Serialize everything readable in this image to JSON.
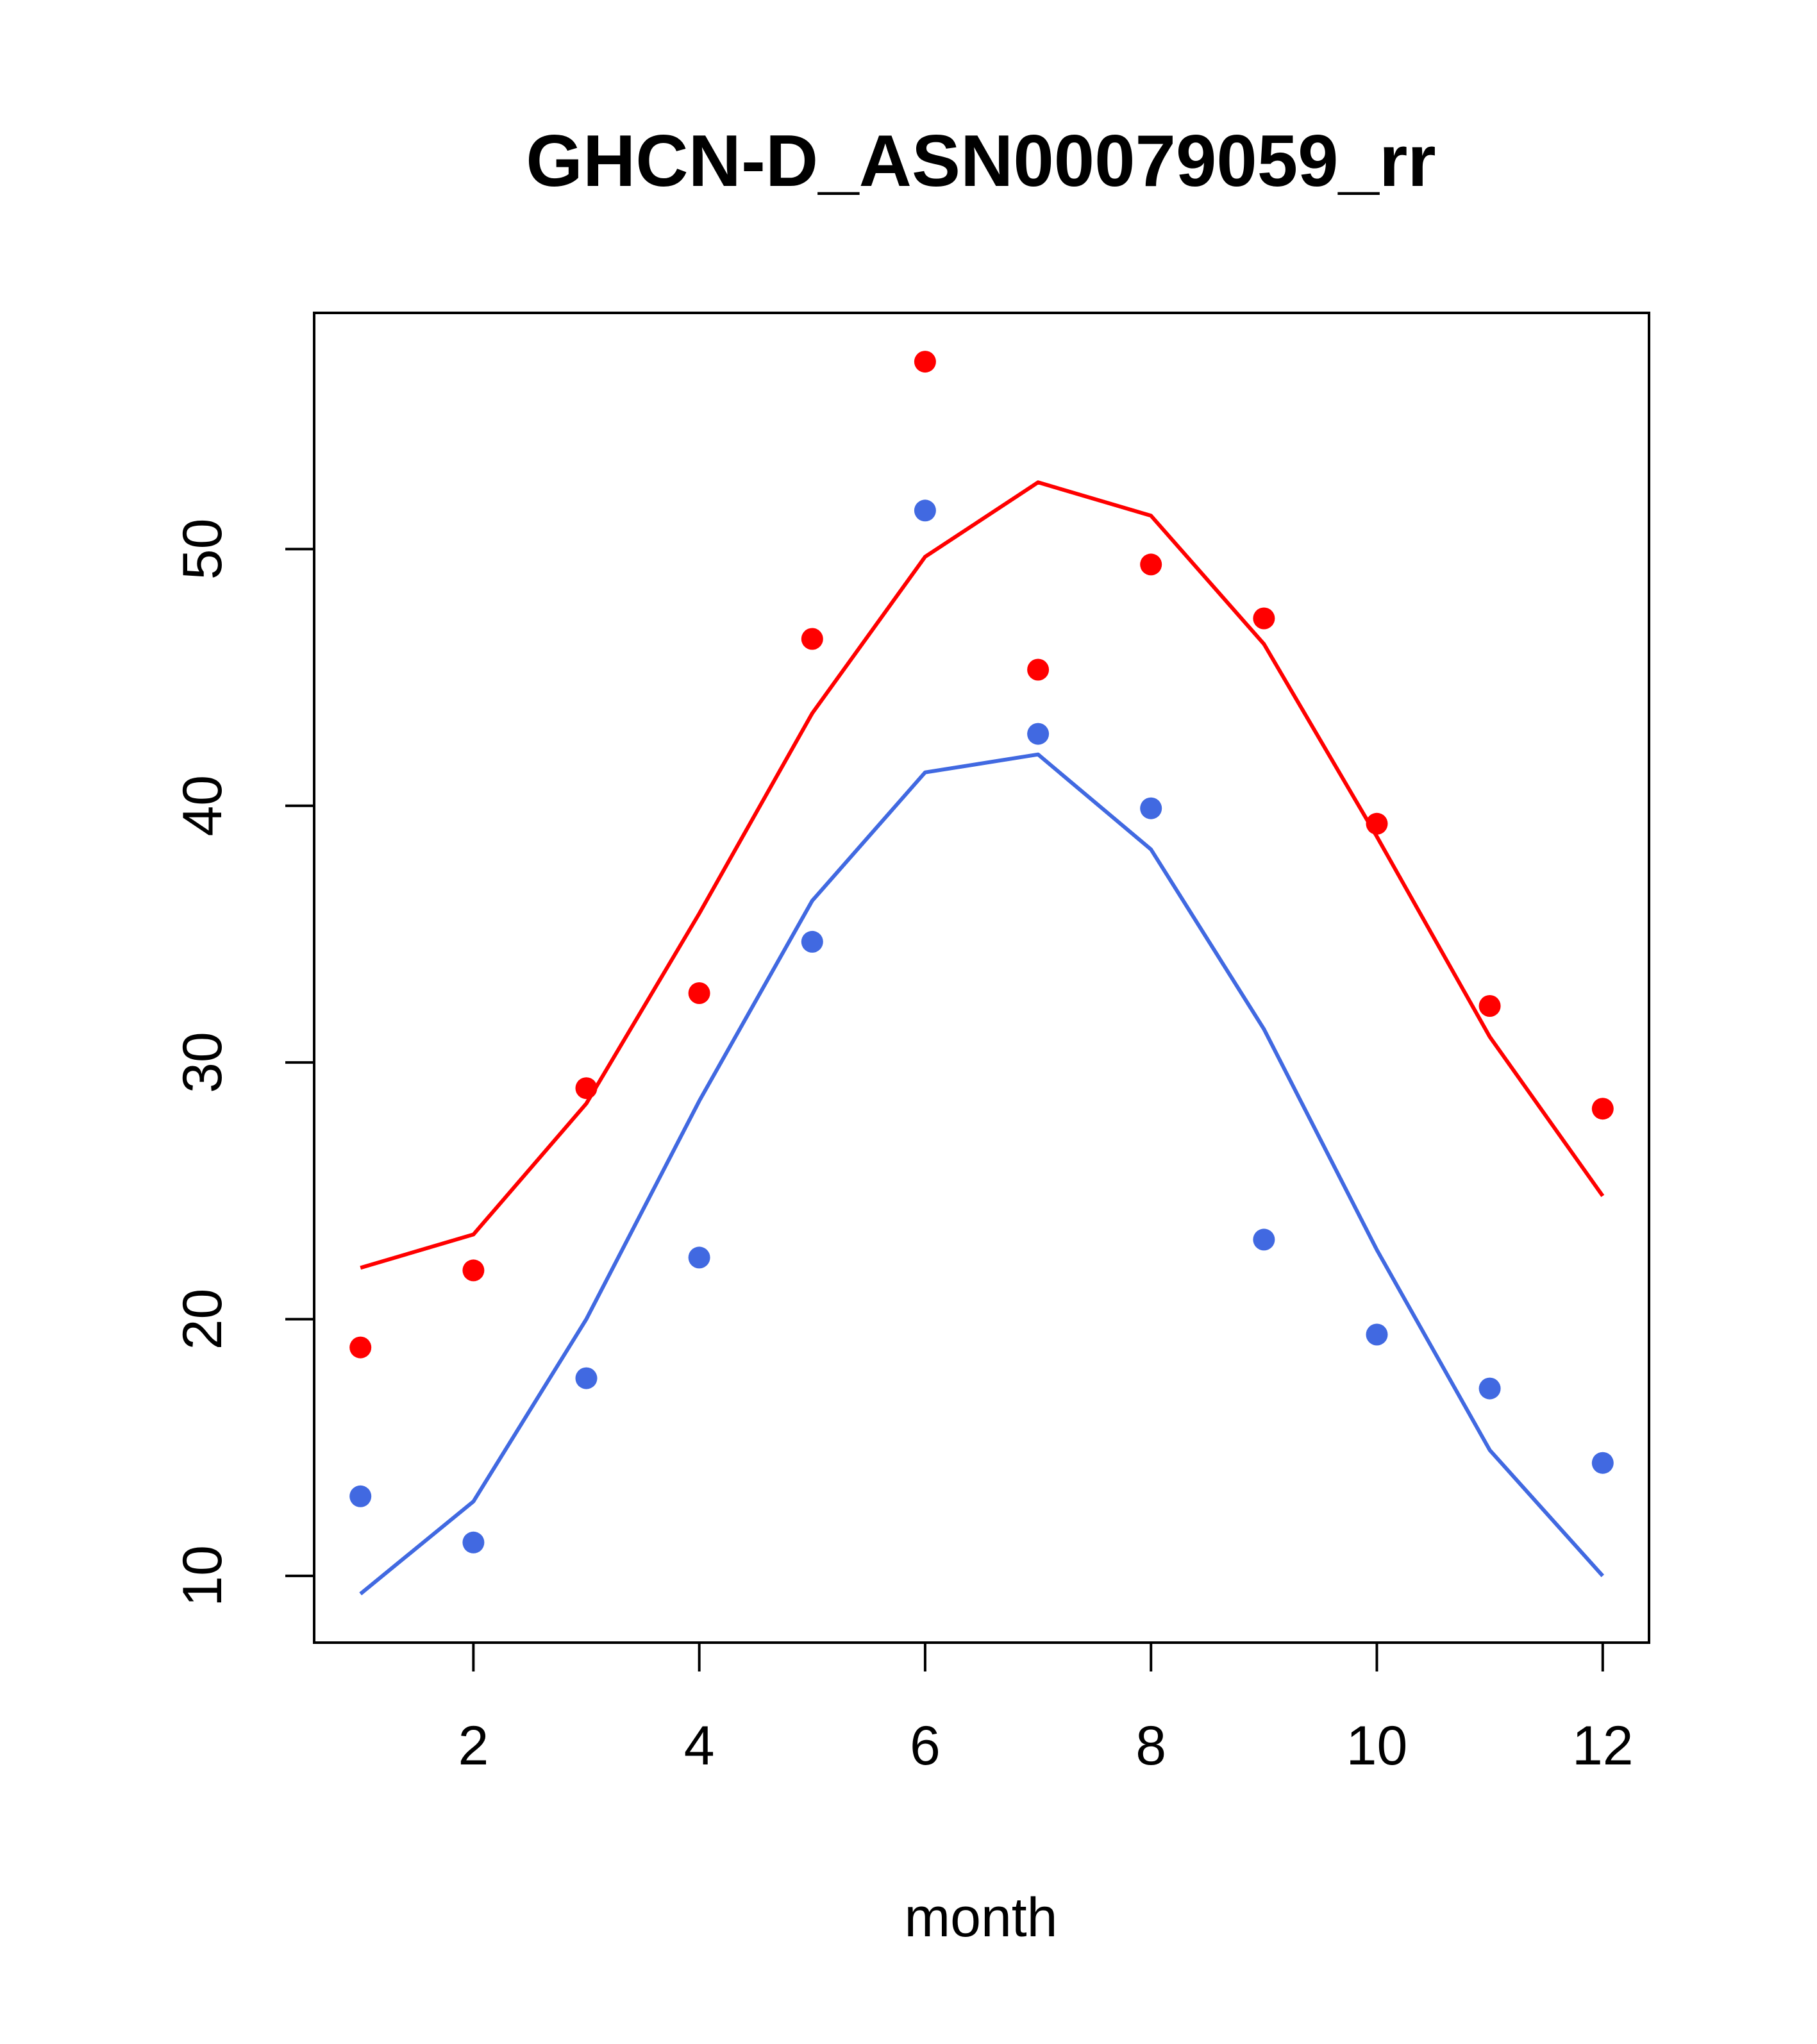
{
  "chart_data": {
    "type": "scatter",
    "title": "GHCN-D_ASN00079059_rr",
    "xlabel": "month",
    "ylabel": "",
    "xlim": [
      0.59,
      12.41
    ],
    "ylim": [
      7.4,
      59.2
    ],
    "x_ticks": [
      2,
      4,
      6,
      8,
      10,
      12
    ],
    "y_ticks": [
      10,
      20,
      30,
      40,
      50
    ],
    "grid": false,
    "legend": "none",
    "series": [
      {
        "color": "#FF0000",
        "x": [
          1,
          2,
          3,
          4,
          5,
          6,
          7,
          8,
          9,
          10,
          11,
          12
        ],
        "points": [
          18.9,
          21.9,
          29.0,
          32.7,
          46.5,
          57.3,
          45.3,
          49.4,
          47.3,
          39.3,
          32.2,
          28.2
        ],
        "line": [
          22.0,
          23.3,
          28.4,
          35.8,
          43.6,
          49.7,
          52.6,
          51.3,
          46.3,
          38.8,
          31.0,
          24.8
        ]
      },
      {
        "color": "#4169E1",
        "x": [
          1,
          2,
          3,
          4,
          5,
          6,
          7,
          8,
          9,
          10,
          11,
          12
        ],
        "points": [
          13.1,
          11.3,
          17.7,
          22.4,
          34.7,
          51.5,
          42.8,
          39.9,
          23.1,
          19.4,
          17.3,
          14.4
        ],
        "line": [
          9.3,
          12.9,
          20.0,
          28.5,
          36.3,
          41.3,
          42.0,
          38.3,
          31.3,
          22.7,
          14.9,
          10.0
        ]
      }
    ]
  }
}
